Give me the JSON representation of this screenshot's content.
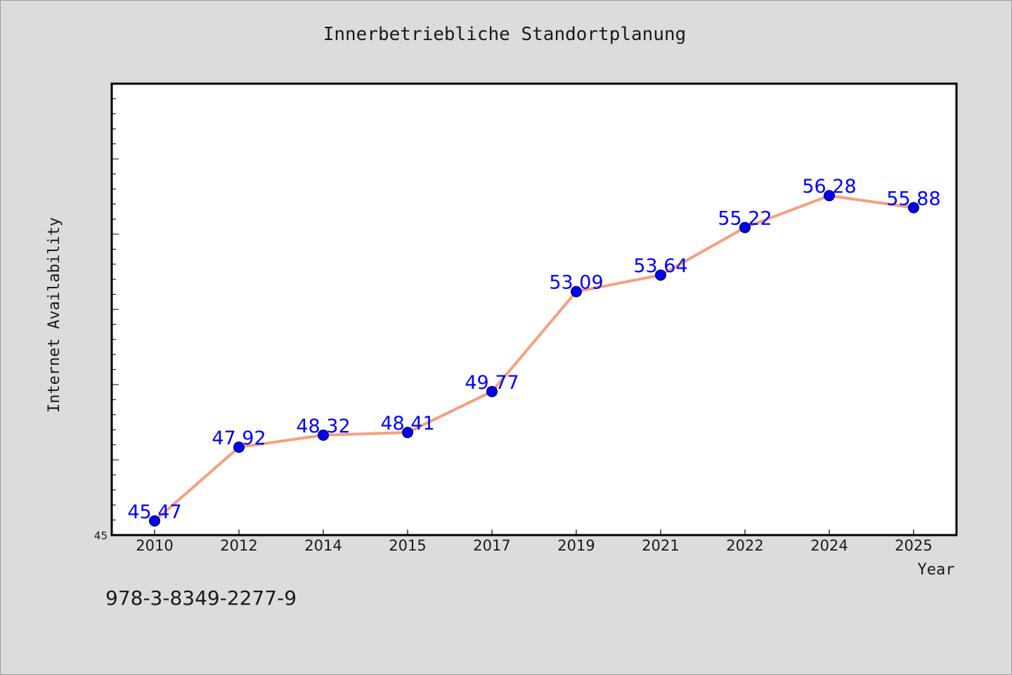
{
  "chart_data": {
    "type": "line",
    "title": "Innerbetriebliche Standortplanung",
    "xlabel": "Year",
    "ylabel": "Internet Availability",
    "categories": [
      "2010",
      "2012",
      "2014",
      "2015",
      "2017",
      "2019",
      "2021",
      "2022",
      "2024",
      "2025"
    ],
    "values": [
      45.47,
      47.92,
      48.32,
      48.41,
      49.77,
      53.09,
      53.64,
      55.22,
      56.28,
      55.88
    ],
    "data_labels": [
      "45.47",
      "47.92",
      "48.32",
      "48.41",
      "49.77",
      "53.09",
      "53.64",
      "55.22",
      "56.28",
      "55.88"
    ],
    "y_tick_label": "45",
    "ylim": [
      45,
      60
    ],
    "grid": false,
    "line_color": "#f4a080",
    "marker_color": "#0000ee",
    "label_color": "#0000ff"
  },
  "footer": {
    "isbn": "978-3-8349-2277-9"
  }
}
